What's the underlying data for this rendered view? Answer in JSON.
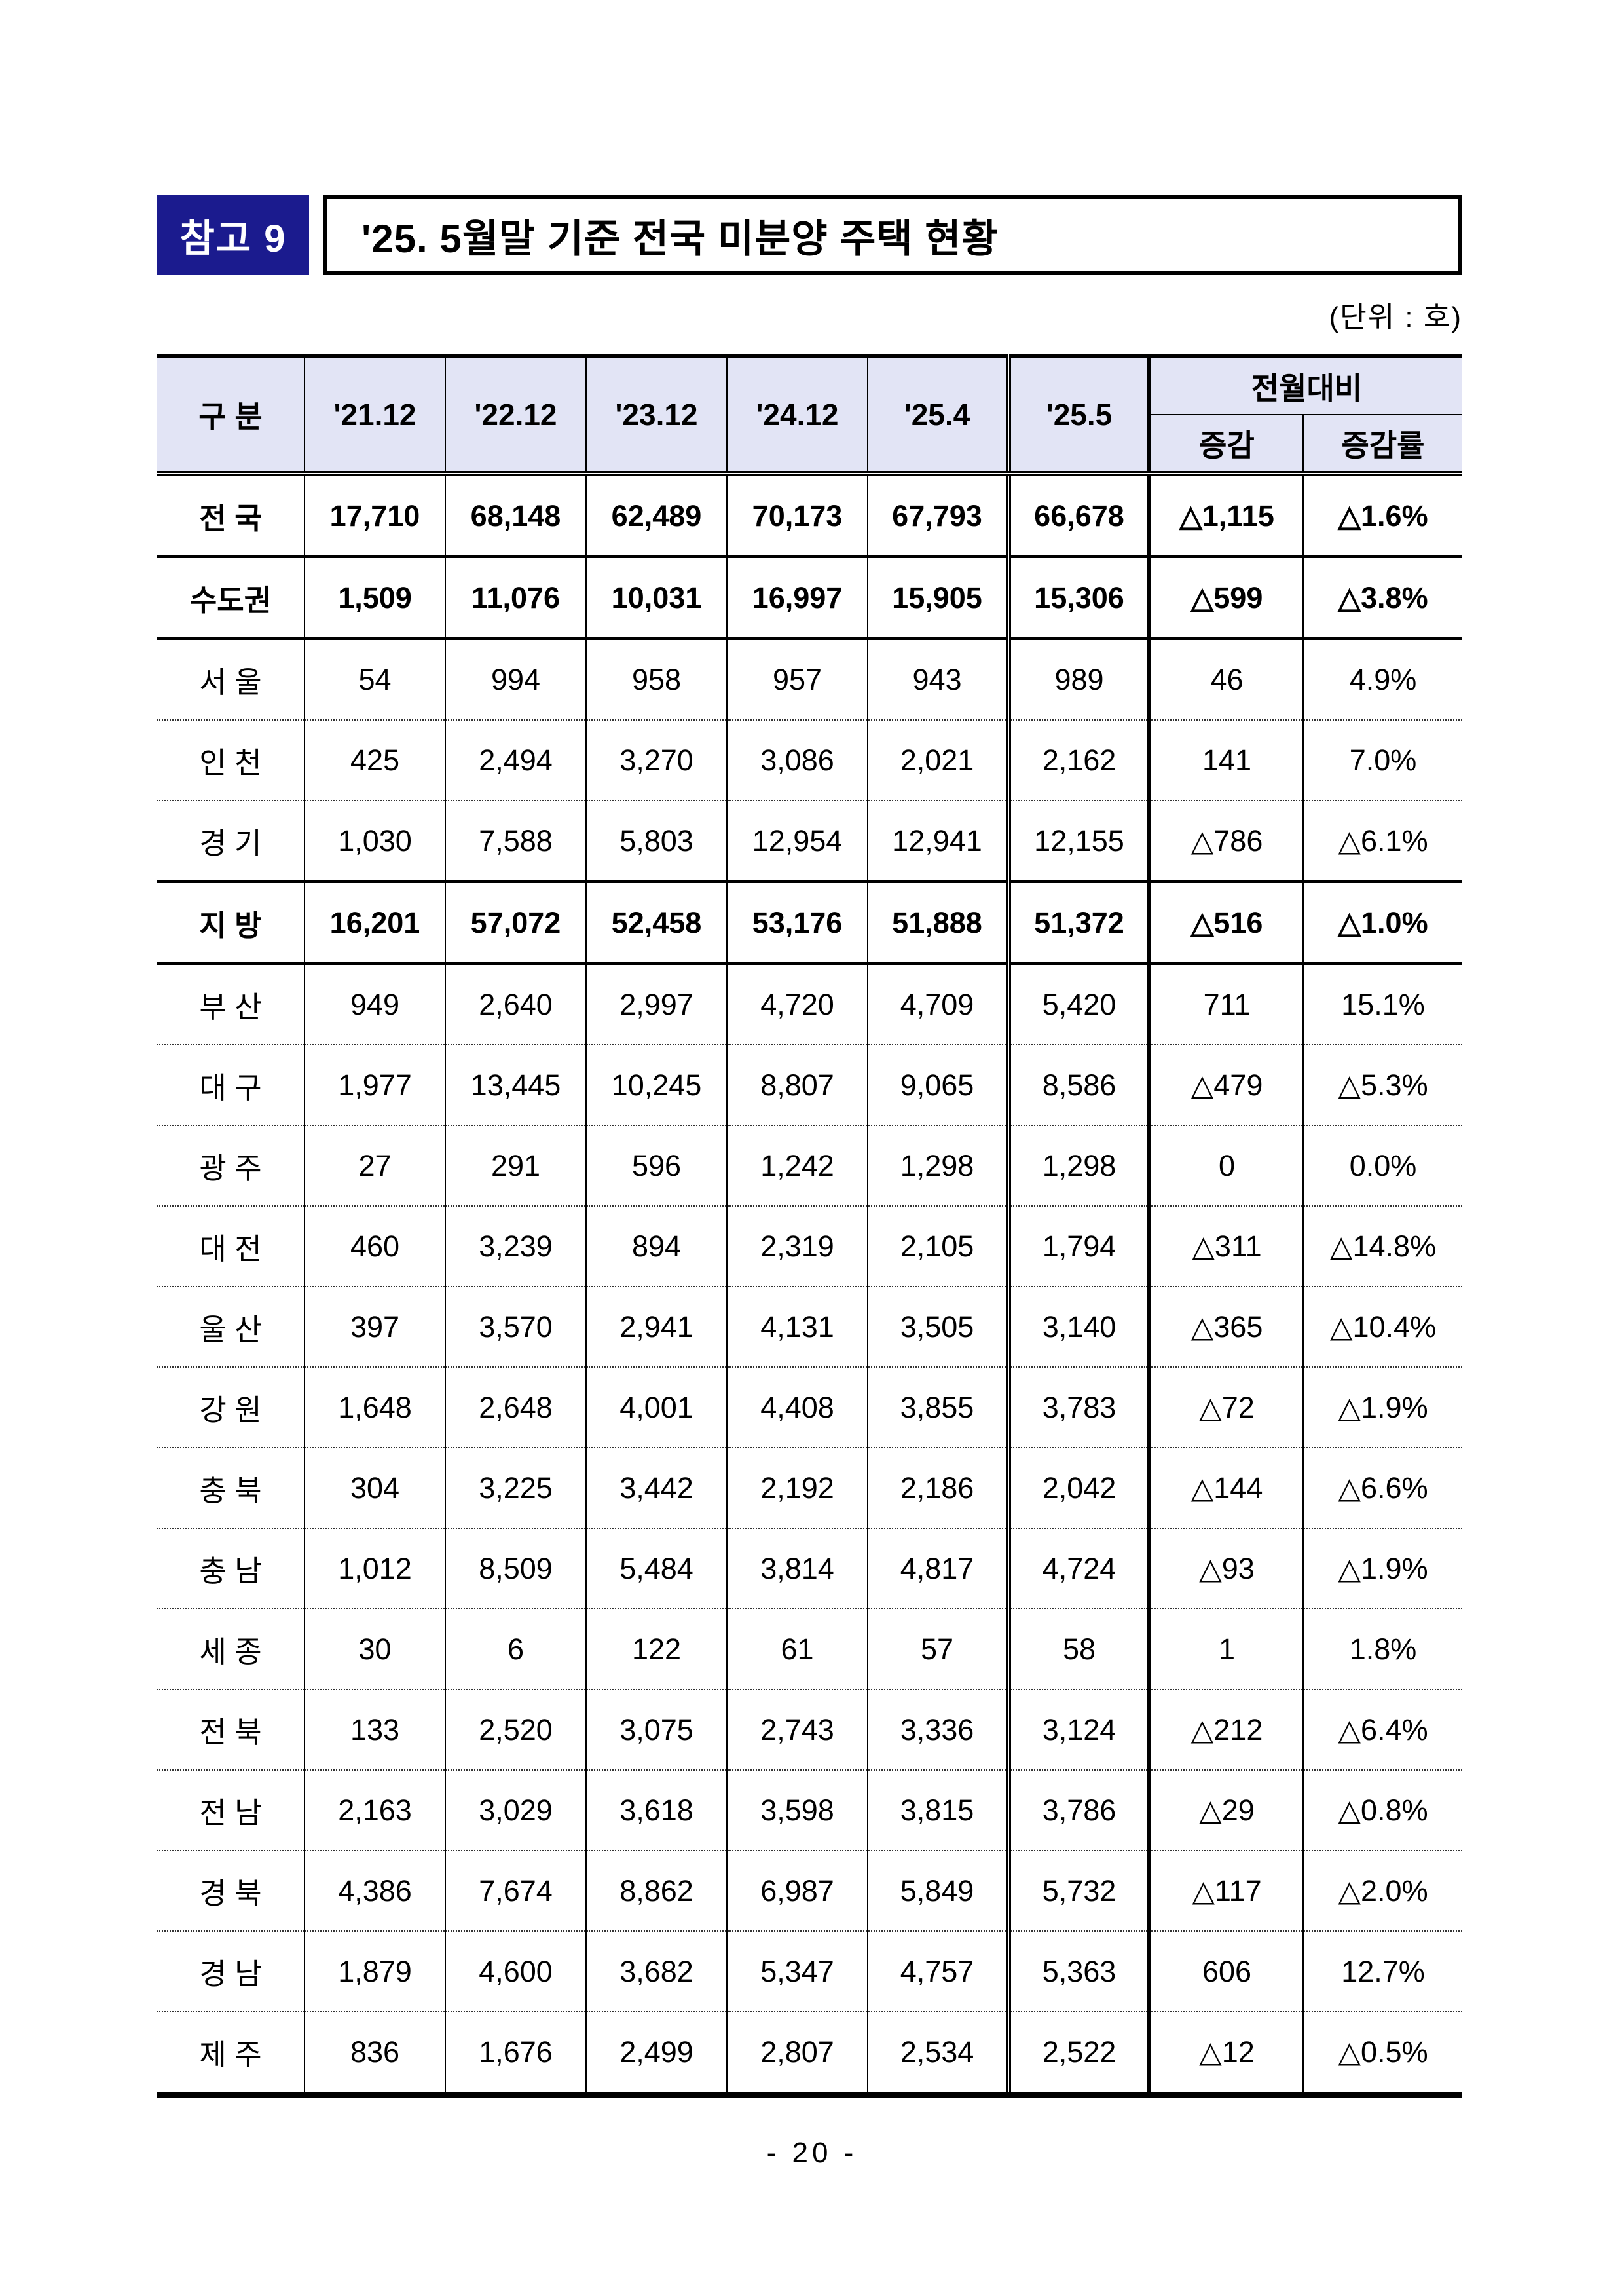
{
  "page": {
    "badge": "참고 9",
    "title": "'25. 5월말 기준 전국 미분양 주택 현황",
    "unit_label": "(단위 : 호)",
    "page_number": "- 20 -"
  },
  "colors": {
    "badge_bg": "#1b1b8e",
    "table_header_bg": "#e2e4f5",
    "border": "#000000"
  },
  "table": {
    "col_headers": [
      "구 분",
      "'21.12",
      "'22.12",
      "'23.12",
      "'24.12",
      "'25.4",
      "'25.5"
    ],
    "group_header": "전월대비",
    "sub_headers": [
      "증감",
      "증감률"
    ],
    "rows": [
      {
        "label": "전 국",
        "bold": true,
        "sep": "solid",
        "values": [
          "17,710",
          "68,148",
          "62,489",
          "70,173",
          "67,793",
          "66,678",
          "△1,115",
          "△1.6%"
        ]
      },
      {
        "label": "수도권",
        "bold": true,
        "sep": "solid",
        "values": [
          "1,509",
          "11,076",
          "10,031",
          "16,997",
          "15,905",
          "15,306",
          "△599",
          "△3.8%"
        ]
      },
      {
        "label": "서 울",
        "bold": false,
        "sep": "dotted",
        "values": [
          "54",
          "994",
          "958",
          "957",
          "943",
          "989",
          "46",
          "4.9%"
        ]
      },
      {
        "label": "인 천",
        "bold": false,
        "sep": "dotted",
        "values": [
          "425",
          "2,494",
          "3,270",
          "3,086",
          "2,021",
          "2,162",
          "141",
          "7.0%"
        ]
      },
      {
        "label": "경 기",
        "bold": false,
        "sep": "solid",
        "values": [
          "1,030",
          "7,588",
          "5,803",
          "12,954",
          "12,941",
          "12,155",
          "△786",
          "△6.1%"
        ]
      },
      {
        "label": "지 방",
        "bold": true,
        "sep": "solid",
        "values": [
          "16,201",
          "57,072",
          "52,458",
          "53,176",
          "51,888",
          "51,372",
          "△516",
          "△1.0%"
        ]
      },
      {
        "label": "부 산",
        "bold": false,
        "sep": "dotted",
        "values": [
          "949",
          "2,640",
          "2,997",
          "4,720",
          "4,709",
          "5,420",
          "711",
          "15.1%"
        ]
      },
      {
        "label": "대 구",
        "bold": false,
        "sep": "dotted",
        "values": [
          "1,977",
          "13,445",
          "10,245",
          "8,807",
          "9,065",
          "8,586",
          "△479",
          "△5.3%"
        ]
      },
      {
        "label": "광 주",
        "bold": false,
        "sep": "dotted",
        "values": [
          "27",
          "291",
          "596",
          "1,242",
          "1,298",
          "1,298",
          "0",
          "0.0%"
        ]
      },
      {
        "label": "대 전",
        "bold": false,
        "sep": "dotted",
        "values": [
          "460",
          "3,239",
          "894",
          "2,319",
          "2,105",
          "1,794",
          "△311",
          "△14.8%"
        ]
      },
      {
        "label": "울 산",
        "bold": false,
        "sep": "dotted",
        "values": [
          "397",
          "3,570",
          "2,941",
          "4,131",
          "3,505",
          "3,140",
          "△365",
          "△10.4%"
        ]
      },
      {
        "label": "강 원",
        "bold": false,
        "sep": "dotted",
        "values": [
          "1,648",
          "2,648",
          "4,001",
          "4,408",
          "3,855",
          "3,783",
          "△72",
          "△1.9%"
        ]
      },
      {
        "label": "충 북",
        "bold": false,
        "sep": "dotted",
        "values": [
          "304",
          "3,225",
          "3,442",
          "2,192",
          "2,186",
          "2,042",
          "△144",
          "△6.6%"
        ]
      },
      {
        "label": "충 남",
        "bold": false,
        "sep": "dotted",
        "values": [
          "1,012",
          "8,509",
          "5,484",
          "3,814",
          "4,817",
          "4,724",
          "△93",
          "△1.9%"
        ]
      },
      {
        "label": "세 종",
        "bold": false,
        "sep": "dotted",
        "values": [
          "30",
          "6",
          "122",
          "61",
          "57",
          "58",
          "1",
          "1.8%"
        ]
      },
      {
        "label": "전 북",
        "bold": false,
        "sep": "dotted",
        "values": [
          "133",
          "2,520",
          "3,075",
          "2,743",
          "3,336",
          "3,124",
          "△212",
          "△6.4%"
        ]
      },
      {
        "label": "전 남",
        "bold": false,
        "sep": "dotted",
        "values": [
          "2,163",
          "3,029",
          "3,618",
          "3,598",
          "3,815",
          "3,786",
          "△29",
          "△0.8%"
        ]
      },
      {
        "label": "경 북",
        "bold": false,
        "sep": "dotted",
        "values": [
          "4,386",
          "7,674",
          "8,862",
          "6,987",
          "5,849",
          "5,732",
          "△117",
          "△2.0%"
        ]
      },
      {
        "label": "경 남",
        "bold": false,
        "sep": "dotted",
        "values": [
          "1,879",
          "4,600",
          "3,682",
          "5,347",
          "4,757",
          "5,363",
          "606",
          "12.7%"
        ]
      },
      {
        "label": "제 주",
        "bold": false,
        "sep": "none",
        "values": [
          "836",
          "1,676",
          "2,499",
          "2,807",
          "2,534",
          "2,522",
          "△12",
          "△0.5%"
        ]
      }
    ]
  }
}
